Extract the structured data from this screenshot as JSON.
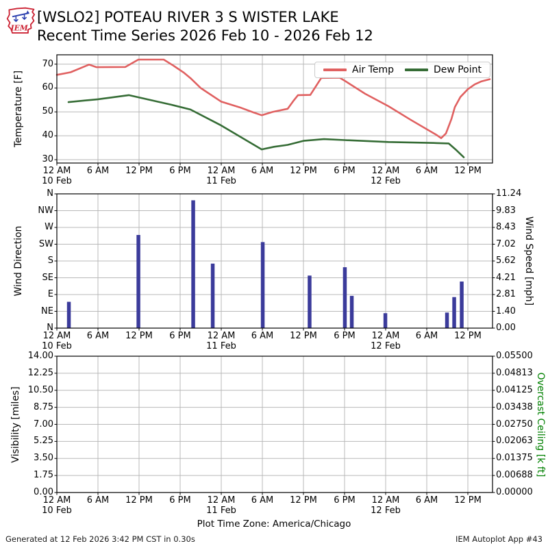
{
  "header": {
    "title_line1": "[WSLO2] POTEAU RIVER 3 S WISTER LAKE",
    "title_line2": "Recent Time Series 2026 Feb 10 - 2026 Feb 12",
    "logo_text": "IEM"
  },
  "footer": {
    "timezone_note": "Plot Time Zone: America/Chicago",
    "generated": "Generated at 12 Feb 2026 3:42 PM CST in 0.30s",
    "app": "IEM Autoplot App #43"
  },
  "colors": {
    "air_temp": "#e06060",
    "dew_point": "#356c35",
    "wind_bar": "#3b3b9b",
    "grid": "#b8b8b8",
    "spine": "#000000",
    "ceiling_label": "#008000",
    "logo_red": "#cc2233",
    "logo_blue": "#2a3fae"
  },
  "time_axis": {
    "x_unit": "hours since 2026-02-10 12 AM (America/Chicago)",
    "x_max_hours": 63.6,
    "tick_hours": [
      0,
      6,
      12,
      18,
      24,
      30,
      36,
      42,
      48,
      54,
      60
    ],
    "tick_labels": [
      "12 AM",
      "6 AM",
      "12 PM",
      "6 PM",
      "12 AM",
      "6 AM",
      "12 PM",
      "6 PM",
      "12 AM",
      "6 AM",
      "12 PM"
    ],
    "date_labels": [
      {
        "label": "10 Feb",
        "hour": 0
      },
      {
        "label": "11 Feb",
        "hour": 24
      },
      {
        "label": "12 Feb",
        "hour": 48
      }
    ]
  },
  "chart_data": [
    {
      "type": "line",
      "ylabel": "Temperature [F]",
      "ylim": [
        28.6,
        73.9
      ],
      "ytick_values": [
        70,
        60,
        50,
        40,
        30
      ],
      "ytick_labels": [
        "70",
        "60",
        "50",
        "40",
        "30"
      ],
      "grid": true,
      "legend_position": "upper right",
      "series": [
        {
          "name": "Air Temp",
          "color": "#e06060",
          "x": [
            0,
            2,
            4.7,
            5.8,
            10,
            11.9,
            15.6,
            17,
            18.5,
            19.6,
            21,
            24,
            26.7,
            28.7,
            29.9,
            31.5,
            33.7,
            34.5,
            35.2,
            37,
            38.6,
            41.3,
            42,
            45,
            48.4,
            51.7,
            55.4,
            56.1,
            56.8,
            57.6,
            58.1,
            58.9,
            60,
            61,
            62,
            63.2
          ],
          "y": [
            65.5,
            66.6,
            69.8,
            68.7,
            68.8,
            71.9,
            71.9,
            69.4,
            66.5,
            63.9,
            60.0,
            54.3,
            51.9,
            49.8,
            48.6,
            50.0,
            51.3,
            54.5,
            57.0,
            57.1,
            64.2,
            64.3,
            63.1,
            57.6,
            52.4,
            46.6,
            40.4,
            39.0,
            41.0,
            47.0,
            52.0,
            56.2,
            59.5,
            61.5,
            62.8,
            63.7
          ]
        },
        {
          "name": "Dew Point",
          "color": "#356c35",
          "x": [
            1.7,
            6,
            10.5,
            16.7,
            19.5,
            24,
            29.9,
            31.7,
            33.7,
            36,
            39,
            42,
            48.4,
            55,
            57.2,
            58.2,
            59.4
          ],
          "y": [
            54.1,
            55.3,
            57.0,
            53.0,
            51.0,
            44.3,
            34.3,
            35.4,
            36.2,
            37.9,
            38.6,
            38.2,
            37.4,
            37.0,
            36.8,
            34.3,
            31.0
          ]
        }
      ]
    },
    {
      "type": "bar",
      "ylabel_left": "Wind Direction",
      "ylabel_right": "Wind Speed [mph]",
      "ytick_labels_left": [
        "N",
        "NW",
        "W",
        "SW",
        "S",
        "SE",
        "E",
        "NE",
        "N"
      ],
      "ytick_labels_right": [
        "11.24",
        "9.83",
        "8.43",
        "7.02",
        "5.62",
        "4.21",
        "2.81",
        "1.40",
        "0.00"
      ],
      "ylim_right": [
        0,
        11.24
      ],
      "grid": true,
      "bars": {
        "name": "Wind Speed",
        "color": "#3b3b9b",
        "x": [
          1.75,
          11.9,
          19.9,
          22.75,
          30.05,
          36.9,
          42.05,
          43.05,
          47.95,
          56.95,
          58.0,
          59.1
        ],
        "speed_mph": [
          2.2,
          7.8,
          10.7,
          5.4,
          7.2,
          4.4,
          5.1,
          2.7,
          1.25,
          1.3,
          2.6,
          3.9
        ]
      }
    },
    {
      "type": "line",
      "ylabel_left": "Visibility [miles]",
      "ylabel_right": "Overcast Ceiling [k ft]",
      "ytick_labels_left": [
        "14.00",
        "12.25",
        "10.50",
        "8.75",
        "7.00",
        "5.25",
        "3.50",
        "1.75",
        "0.00"
      ],
      "ytick_labels_right": [
        "0.05500",
        "0.04813",
        "0.04125",
        "0.03438",
        "0.02750",
        "0.02063",
        "0.01375",
        "0.00688",
        "0.00000"
      ],
      "ylim_left": [
        0,
        14
      ],
      "grid": true,
      "series": []
    }
  ]
}
